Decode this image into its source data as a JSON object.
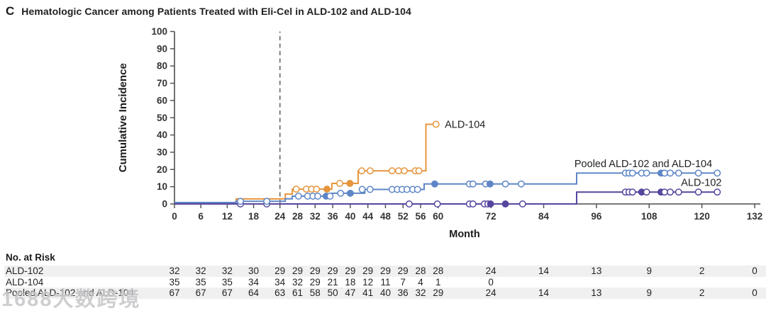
{
  "title": {
    "panel_letter": "C",
    "text": "Hematologic Cancer among Patients Treated with Eli-Cel in ALD-102 and ALD-104"
  },
  "chart_data": {
    "type": "line",
    "subtype": "cumulative-incidence-step",
    "xlabel": "Month",
    "ylabel": "Cumulative Incidence",
    "xlim": [
      0,
      132
    ],
    "ylim": [
      0,
      100
    ],
    "x_ticks": [
      0,
      6,
      12,
      18,
      24,
      28,
      32,
      36,
      40,
      44,
      48,
      52,
      56,
      60,
      72,
      84,
      96,
      108,
      120,
      132
    ],
    "y_ticks": [
      0,
      10,
      20,
      30,
      40,
      50,
      60,
      70,
      80,
      90,
      100
    ],
    "reference_line": {
      "x": 24,
      "style": "dashed",
      "color": "#545456"
    },
    "axis_color": "#4b4b4d",
    "tick_label_color": "#343434",
    "series": [
      {
        "name": "ALD-104",
        "color": "#E6953C",
        "end_month": 59.5,
        "steps": [
          [
            0,
            0
          ],
          [
            14,
            2.9
          ],
          [
            25.2,
            5.7
          ],
          [
            26.8,
            8.6
          ],
          [
            35.8,
            11.9
          ],
          [
            41.8,
            19.2
          ],
          [
            57.2,
            46.2
          ]
        ],
        "censors": [
          [
            27.7,
            8.6,
            false
          ],
          [
            30.0,
            8.6,
            false
          ],
          [
            31.2,
            8.6,
            false
          ],
          [
            32.3,
            8.6,
            false
          ],
          [
            34.7,
            8.6,
            true
          ],
          [
            37.6,
            11.9,
            false
          ],
          [
            39.9,
            11.9,
            true
          ],
          [
            42.6,
            19.2,
            false
          ],
          [
            44.5,
            19.2,
            false
          ],
          [
            49.5,
            19.2,
            false
          ],
          [
            51.0,
            19.2,
            false
          ],
          [
            52.3,
            19.2,
            false
          ],
          [
            54.8,
            19.2,
            false
          ],
          [
            55.6,
            19.2,
            false
          ],
          [
            59.5,
            46.2,
            false
          ]
        ],
        "label": {
          "text": "ALD-104",
          "x": 61.5,
          "y": 46.2,
          "anchor": "start"
        }
      },
      {
        "name": "Pooled ALD-102 and ALD-104",
        "color": "#5E86C6",
        "end_month": 123.5,
        "steps": [
          [
            0,
            0
          ],
          [
            14,
            1.5
          ],
          [
            25.2,
            3.0
          ],
          [
            26.8,
            4.5
          ],
          [
            35.8,
            6.2
          ],
          [
            43.3,
            8.4
          ],
          [
            56.8,
            11.6
          ],
          [
            91.5,
            17.9
          ]
        ],
        "censors": [
          [
            15,
            1.5,
            false
          ],
          [
            21,
            1.5,
            false
          ],
          [
            28.2,
            4.5,
            false
          ],
          [
            30.3,
            4.5,
            false
          ],
          [
            31.5,
            4.5,
            false
          ],
          [
            32.6,
            4.5,
            false
          ],
          [
            34.5,
            4.5,
            true
          ],
          [
            35.4,
            4.5,
            false
          ],
          [
            37.8,
            6.2,
            false
          ],
          [
            40.0,
            6.2,
            true
          ],
          [
            42.7,
            8.4,
            false
          ],
          [
            44.5,
            8.4,
            false
          ],
          [
            49.5,
            8.4,
            false
          ],
          [
            50.7,
            8.4,
            false
          ],
          [
            51.8,
            8.4,
            false
          ],
          [
            52.9,
            8.4,
            false
          ],
          [
            54.2,
            8.4,
            false
          ],
          [
            55.3,
            8.4,
            false
          ],
          [
            59.2,
            11.6,
            true
          ],
          [
            67.1,
            11.6,
            false
          ],
          [
            67.9,
            11.6,
            false
          ],
          [
            70.8,
            11.6,
            false
          ],
          [
            71.8,
            11.6,
            true
          ],
          [
            75.3,
            11.6,
            false
          ],
          [
            78.9,
            11.6,
            false
          ],
          [
            102.6,
            17.9,
            false
          ],
          [
            103.4,
            17.9,
            false
          ],
          [
            104.2,
            17.9,
            false
          ],
          [
            106.3,
            17.9,
            false
          ],
          [
            107.4,
            17.9,
            false
          ],
          [
            110.7,
            17.9,
            true
          ],
          [
            111.5,
            17.9,
            false
          ],
          [
            112.8,
            17.9,
            false
          ],
          [
            114.7,
            17.9,
            false
          ],
          [
            119.2,
            17.9,
            false
          ],
          [
            123.5,
            17.9,
            false
          ]
        ],
        "label": {
          "text": "Pooled ALD-102 and ALD-104",
          "x": 91.0,
          "y": 23.5,
          "anchor": "start"
        }
      },
      {
        "name": "ALD-102",
        "color": "#57469E",
        "end_month": 123.5,
        "steps": [
          [
            0,
            0
          ],
          [
            91.5,
            6.9
          ]
        ],
        "censors": [
          [
            15,
            0,
            false
          ],
          [
            21,
            0,
            false
          ],
          [
            53.4,
            0,
            false
          ],
          [
            59.8,
            0,
            false
          ],
          [
            67.1,
            0,
            false
          ],
          [
            67.9,
            0,
            false
          ],
          [
            70.5,
            0,
            false
          ],
          [
            71.3,
            0,
            false
          ],
          [
            71.9,
            0,
            true
          ],
          [
            75.3,
            0,
            true
          ],
          [
            79.2,
            0,
            false
          ],
          [
            102.6,
            6.9,
            false
          ],
          [
            103.4,
            6.9,
            false
          ],
          [
            104.2,
            6.9,
            false
          ],
          [
            106.3,
            6.9,
            true
          ],
          [
            107.4,
            6.9,
            false
          ],
          [
            110.7,
            6.9,
            true
          ],
          [
            111.5,
            6.9,
            false
          ],
          [
            112.8,
            6.9,
            false
          ],
          [
            114.7,
            6.9,
            false
          ],
          [
            119.2,
            6.9,
            false
          ],
          [
            123.5,
            6.9,
            false
          ]
        ],
        "label": {
          "text": "ALD-102",
          "x": 124.5,
          "y": 12.5,
          "anchor": "end"
        }
      }
    ]
  },
  "risk_table": {
    "header": "No. at Risk",
    "months": [
      0,
      6,
      12,
      18,
      24,
      28,
      32,
      36,
      40,
      44,
      48,
      52,
      56,
      60,
      72,
      84,
      96,
      108,
      120,
      132
    ],
    "rows": [
      {
        "label": "ALD-102",
        "striped": true,
        "values": [
          "32",
          "32",
          "32",
          "30",
          "29",
          "29",
          "29",
          "29",
          "29",
          "29",
          "29",
          "29",
          "28",
          "28",
          "24",
          "14",
          "13",
          "9",
          "2",
          "0"
        ]
      },
      {
        "label": "ALD-104",
        "striped": false,
        "values": [
          "35",
          "35",
          "35",
          "34",
          "34",
          "32",
          "29",
          "21",
          "18",
          "12",
          "11",
          "7",
          "4",
          "1",
          "0"
        ]
      },
      {
        "label": "Pooled ALD-102 and ALD-104",
        "striped": true,
        "values": [
          "67",
          "67",
          "67",
          "64",
          "63",
          "61",
          "58",
          "50",
          "47",
          "41",
          "40",
          "36",
          "32",
          "29",
          "24",
          "14",
          "13",
          "9",
          "2",
          "0"
        ]
      }
    ]
  },
  "watermark": {
    "text": "1688大数跨境"
  }
}
